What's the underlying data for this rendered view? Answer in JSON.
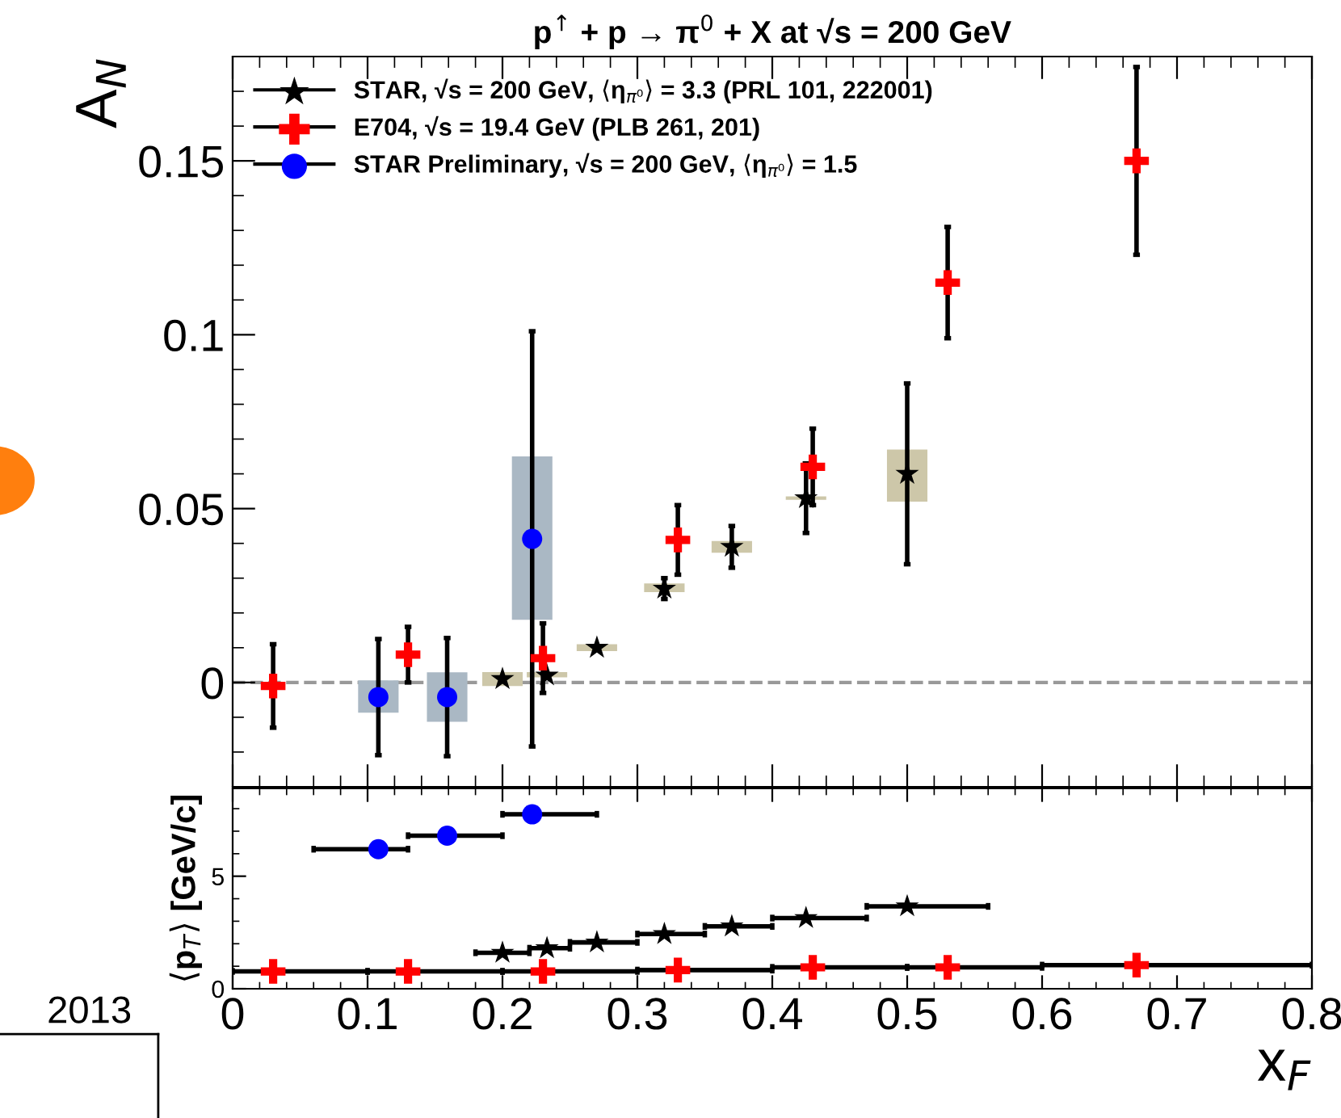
{
  "chart_data": [
    {
      "type": "scatter",
      "title": "p$^{↑}$ + p → π$^{0}$ + X at √s = 200 GeV",
      "ylabel": "A$_{N}$",
      "xlim": [
        0,
        0.8
      ],
      "xticks": [
        0,
        0.1,
        0.2,
        0.3,
        0.4,
        0.5,
        0.6,
        0.7,
        0.8
      ],
      "ylim": [
        -0.03,
        0.18
      ],
      "yticks": [
        0,
        0.05,
        {
          "value": 0.1,
          "label": "0.1"
        },
        0.15
      ],
      "tick_labels": "y",
      "grid": false,
      "legend": "top left",
      "ref_lines": [
        {
          "axis": "y",
          "value": 0,
          "label": null,
          "color": "#999999",
          "line_style": "dashed"
        }
      ],
      "series": [
        {
          "type": "bar",
          "color": "#cdc7a9",
          "x": [
            0.2,
            0.233,
            0.27,
            0.32,
            0.37,
            0.425,
            0.5
          ],
          "base": [
            -0.001,
            0.0015,
            0.009,
            0.026,
            0.0373,
            0.0525,
            0.052
          ],
          "values": [
            0.004,
            0.0015,
            0.002,
            0.0025,
            0.0034,
            0.001,
            0.015
          ]
        },
        {
          "type": "bar",
          "color": "#aab8c4",
          "x": [
            0.108,
            0.159,
            0.222
          ],
          "base": [
            -0.0087,
            -0.0113,
            0.018
          ],
          "values": [
            0.0093,
            0.0142,
            0.047
          ]
        },
        {
          "name": "STAR, √s = 200 GeV, ⟨η$_{π⁰}$⟩ = 3.3 (PRL 101, 222001)",
          "color": "#000000",
          "marker": "star",
          "x": [
            0.2,
            0.233,
            0.27,
            0.32,
            0.37,
            0.425,
            0.5
          ],
          "values": [
            0.001,
            0.002,
            0.01,
            0.027,
            0.039,
            0.053,
            0.06
          ],
          "errors": [
            null,
            null,
            null,
            0.003,
            0.006,
            0.01,
            0.026
          ]
        },
        {
          "name": "E704, √s = 19.4 GeV (PLB 261, 201)",
          "color": "#ff0000",
          "marker": "cross",
          "x": [
            0.03,
            0.13,
            0.23,
            0.33,
            0.43,
            0.53,
            0.67
          ],
          "values": [
            -0.001,
            0.008,
            0.007,
            0.041,
            0.062,
            0.115,
            0.15
          ],
          "errors": [
            0.012,
            0.008,
            0.01,
            0.01,
            0.011,
            0.016,
            0.027
          ]
        },
        {
          "name": "STAR Preliminary, √s = 200 GeV, ⟨η$_{π⁰}$⟩ = 1.5",
          "color": "#0000ff",
          "marker": "circle",
          "x": [
            0.108,
            0.159,
            0.222
          ],
          "values": [
            -0.0042,
            -0.0042,
            0.0413
          ],
          "errors": [
            0.0167,
            0.017,
            0.0597
          ]
        }
      ]
    },
    {
      "type": "scatter",
      "xlabel": "x$_{F}$",
      "ylabel": "⟨p$_{T}$⟩ [GeV/c]",
      "xlim": [
        0,
        0.8
      ],
      "xticks": [
        0,
        0.1,
        0.2,
        0.3,
        0.4,
        0.5,
        0.6,
        0.7,
        0.8
      ],
      "ylim": [
        0,
        8.9
      ],
      "yticks": [
        0,
        5
      ],
      "grid": false,
      "annotations": [
        "2013"
      ],
      "series": [
        {
          "color": "#0000ff",
          "marker": "circle",
          "x": [
            0.108,
            0.159,
            0.222
          ],
          "values": [
            6.2,
            6.8,
            7.75
          ],
          "xerrors": [
            [
              0.06,
              0.13
            ],
            [
              0.13,
              0.2
            ],
            [
              0.2,
              0.27
            ]
          ]
        },
        {
          "color": "#000000",
          "marker": "star",
          "x": [
            0.2,
            0.233,
            0.27,
            0.32,
            0.37,
            0.425,
            0.5
          ],
          "values": [
            1.6,
            1.8,
            2.06,
            2.43,
            2.77,
            3.14,
            3.66
          ],
          "xerrors": [
            [
              0.18,
              0.22
            ],
            [
              0.22,
              0.25
            ],
            [
              0.25,
              0.3
            ],
            [
              0.3,
              0.35
            ],
            [
              0.35,
              0.4
            ],
            [
              0.4,
              0.47
            ],
            [
              0.47,
              0.56
            ]
          ]
        },
        {
          "color": "#ff0000",
          "marker": "cross",
          "x": [
            0.03,
            0.13,
            0.23,
            0.33,
            0.43,
            0.53,
            0.67
          ],
          "values": [
            0.77,
            0.77,
            0.77,
            0.83,
            0.95,
            0.95,
            1.05
          ],
          "xerrors": [
            [
              0,
              0.1
            ],
            [
              0.1,
              0.2
            ],
            [
              0.2,
              0.3
            ],
            [
              0.3,
              0.4
            ],
            [
              0.4,
              0.5
            ],
            [
              0.5,
              0.6
            ],
            [
              0.6,
              0.8
            ]
          ]
        }
      ]
    }
  ]
}
